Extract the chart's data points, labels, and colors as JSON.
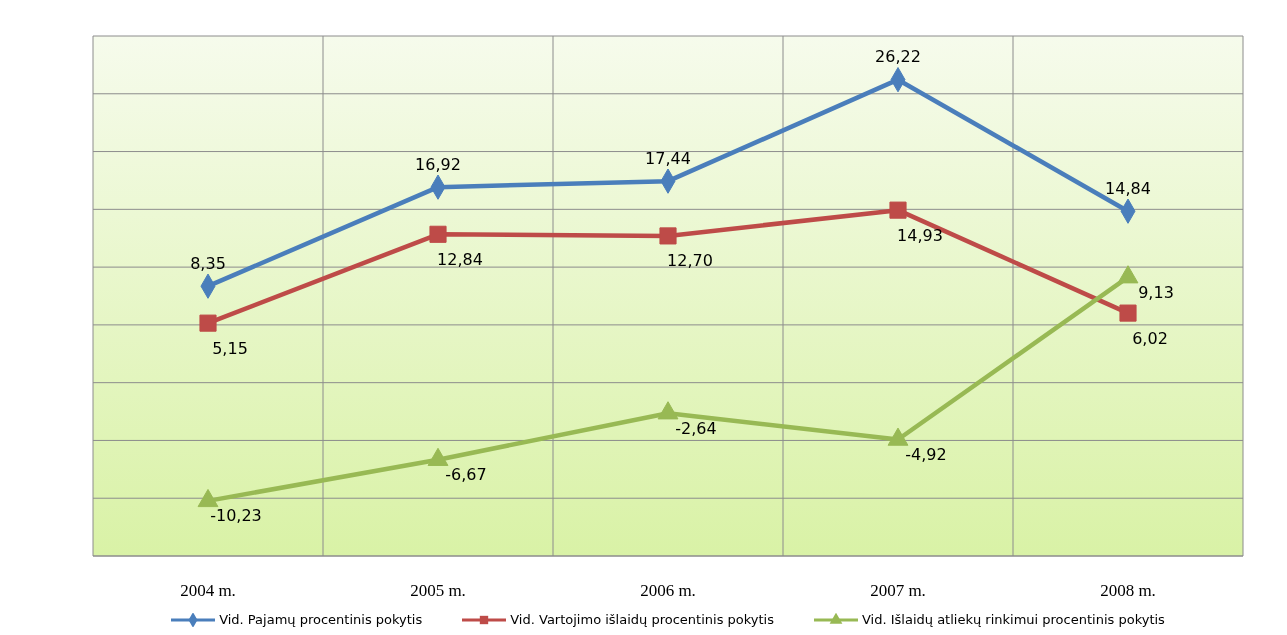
{
  "chart_data": {
    "type": "line",
    "categories": [
      "2004 m.",
      "2005 m.",
      "2006 m.",
      "2007 m.",
      "2008 m."
    ],
    "series": [
      {
        "name": "Vid. Pajamų  procentinis pokytis",
        "color": "#4a7ebb",
        "marker": "diamond",
        "values": [
          8.35,
          16.92,
          17.44,
          26.22,
          14.84
        ],
        "value_labels": [
          "8,35",
          "16,92",
          "17,44",
          "26,22",
          "14,84"
        ]
      },
      {
        "name": "Vid. Vartojimo išlaidų procentinis pokytis",
        "color": "#be4b48",
        "marker": "square",
        "values": [
          5.15,
          12.84,
          12.7,
          14.93,
          6.02
        ],
        "value_labels": [
          "5,15",
          "12,84",
          "12,70",
          "14,93",
          "6,02"
        ]
      },
      {
        "name": "Vid. Išlaidų atliekų rinkimui procentinis pokytis",
        "color": "#98b954",
        "marker": "triangle",
        "values": [
          -10.23,
          -6.67,
          -2.64,
          -4.92,
          9.13
        ],
        "value_labels": [
          "-10,23",
          "-6,67",
          "-2,64",
          "-4,92",
          "9,13"
        ]
      }
    ],
    "ylim": [
      -15,
      30
    ],
    "yticks": [
      {
        "value": -15,
        "label": null
      },
      {
        "value": -10,
        "label": null
      },
      {
        "value": -5,
        "label": null
      },
      {
        "value": 0,
        "label": null
      },
      {
        "value": 5,
        "label": null
      },
      {
        "value": 10,
        "label": null
      },
      {
        "value": 15,
        "label": null
      },
      {
        "value": 20,
        "label": null
      },
      {
        "value": 25,
        "label": null
      },
      {
        "value": 30,
        "label": null
      }
    ],
    "tick_labels": "x",
    "grid": true,
    "legend": "bottom"
  }
}
